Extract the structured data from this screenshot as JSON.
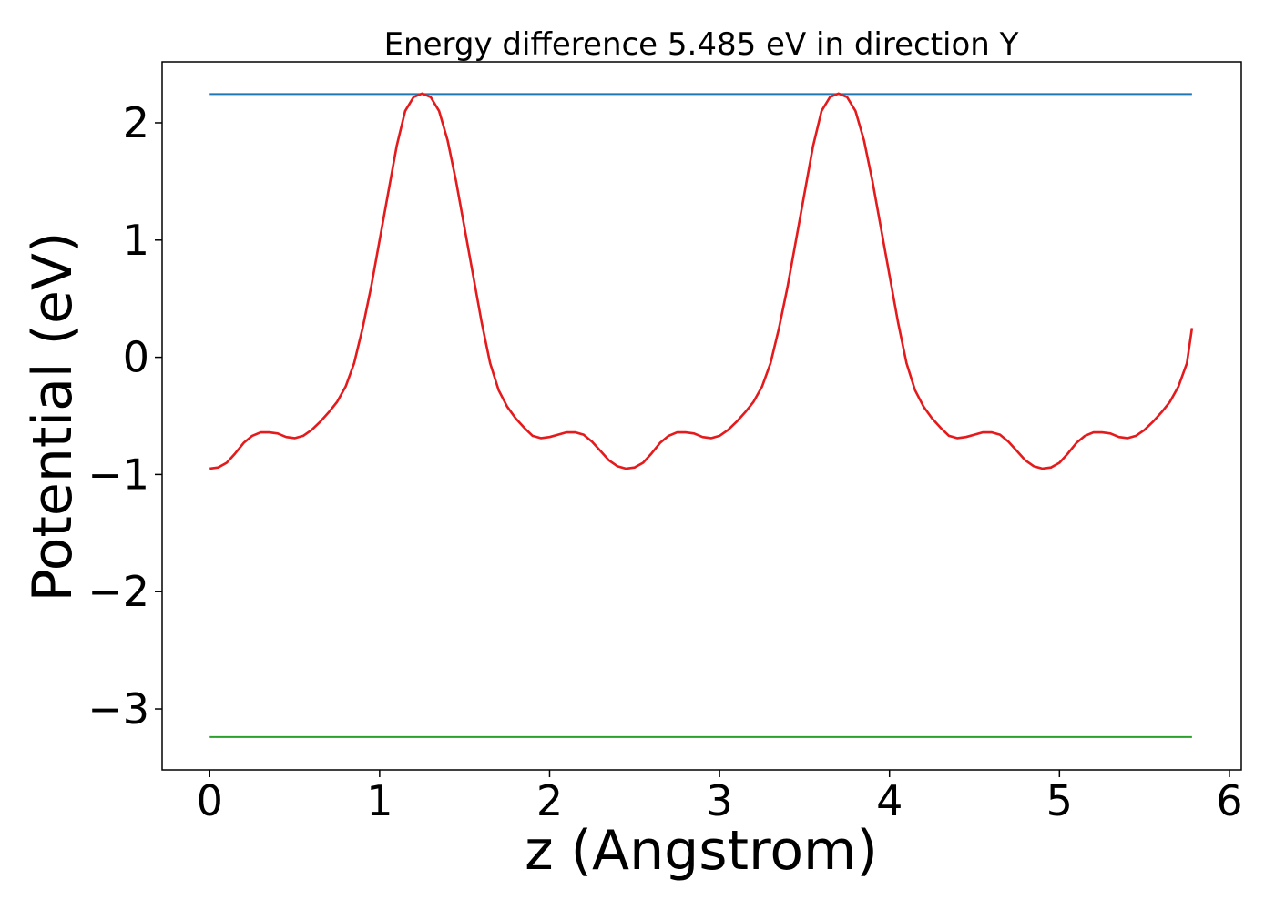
{
  "chart_data": {
    "type": "line",
    "title": "Energy difference 5.485 eV in direction Y",
    "xlabel": "z (Angstrom)",
    "ylabel": "Potential (eV)",
    "xlim": [
      -0.28,
      6.07
    ],
    "ylim": [
      -3.52,
      2.52
    ],
    "xticks": [
      0,
      1,
      2,
      3,
      4,
      5,
      6
    ],
    "xtick_labels": [
      "0",
      "1",
      "2",
      "3",
      "4",
      "5",
      "6"
    ],
    "yticks": [
      2,
      1,
      0,
      -1,
      -2,
      -3
    ],
    "ytick_labels": [
      "2",
      "1",
      "0",
      "−1",
      "−2",
      "−3"
    ],
    "grid": false,
    "series": [
      {
        "color": "#1f77b4",
        "x": [
          0,
          5.78
        ],
        "y": [
          2.245,
          2.245
        ]
      },
      {
        "color": "#2ca02c",
        "x": [
          0,
          5.78
        ],
        "y": [
          -3.24,
          -3.24
        ]
      },
      {
        "color": "#e41a1c",
        "x": [
          0,
          0.05,
          0.1,
          0.15,
          0.2,
          0.25,
          0.3,
          0.35,
          0.4,
          0.45,
          0.5,
          0.55,
          0.6,
          0.65,
          0.7,
          0.75,
          0.8,
          0.85,
          0.9,
          0.95,
          1.0,
          1.05,
          1.1,
          1.15,
          1.2,
          1.25,
          1.3,
          1.35,
          1.4,
          1.45,
          1.5,
          1.55,
          1.6,
          1.65,
          1.7,
          1.75,
          1.8,
          1.85,
          1.9,
          1.95,
          2.0,
          2.05,
          2.1,
          2.15,
          2.2,
          2.25,
          2.3,
          2.35,
          2.4,
          2.45,
          2.5,
          2.55,
          2.6,
          2.65,
          2.7,
          2.75,
          2.8,
          2.85,
          2.9,
          2.95,
          3.0,
          3.05,
          3.1,
          3.15,
          3.2,
          3.25,
          3.3,
          3.35,
          3.4,
          3.45,
          3.5,
          3.55,
          3.6,
          3.65,
          3.7,
          3.75,
          3.8,
          3.85,
          3.9,
          3.95,
          4.0,
          4.05,
          4.1,
          4.15,
          4.2,
          4.25,
          4.3,
          4.35,
          4.4,
          4.45,
          4.5,
          4.55,
          4.6,
          4.65,
          4.7,
          4.75,
          4.8,
          4.85,
          4.9,
          4.95,
          5.0,
          5.05,
          5.1,
          5.15,
          5.2,
          5.25,
          5.3,
          5.35,
          5.4,
          5.45,
          5.5,
          5.55,
          5.6,
          5.65,
          5.7,
          5.75,
          5.78
        ],
        "y": [
          -0.95,
          -0.94,
          -0.9,
          -0.82,
          -0.73,
          -0.67,
          -0.64,
          -0.64,
          -0.65,
          -0.68,
          -0.69,
          -0.67,
          -0.62,
          -0.55,
          -0.47,
          -0.38,
          -0.25,
          -0.05,
          0.25,
          0.6,
          1.0,
          1.4,
          1.8,
          2.1,
          2.22,
          2.25,
          2.22,
          2.1,
          1.85,
          1.5,
          1.1,
          0.7,
          0.3,
          -0.05,
          -0.28,
          -0.42,
          -0.52,
          -0.6,
          -0.67,
          -0.69,
          -0.68,
          -0.66,
          -0.64,
          -0.64,
          -0.66,
          -0.72,
          -0.8,
          -0.88,
          -0.93,
          -0.95,
          -0.94,
          -0.9,
          -0.82,
          -0.73,
          -0.67,
          -0.64,
          -0.64,
          -0.65,
          -0.68,
          -0.69,
          -0.67,
          -0.62,
          -0.55,
          -0.47,
          -0.38,
          -0.25,
          -0.05,
          0.25,
          0.6,
          1.0,
          1.4,
          1.8,
          2.1,
          2.22,
          2.25,
          2.22,
          2.1,
          1.85,
          1.5,
          1.1,
          0.7,
          0.3,
          -0.05,
          -0.28,
          -0.42,
          -0.52,
          -0.6,
          -0.67,
          -0.69,
          -0.68,
          -0.66,
          -0.64,
          -0.64,
          -0.66,
          -0.72,
          -0.8,
          -0.88,
          -0.93,
          -0.95,
          -0.94,
          -0.9,
          -0.82,
          -0.73,
          -0.67,
          -0.64,
          -0.64,
          -0.65,
          -0.68,
          -0.69,
          -0.67,
          -0.62,
          -0.55,
          -0.47,
          -0.38,
          -0.25,
          -0.05,
          0.25
        ]
      }
    ]
  }
}
